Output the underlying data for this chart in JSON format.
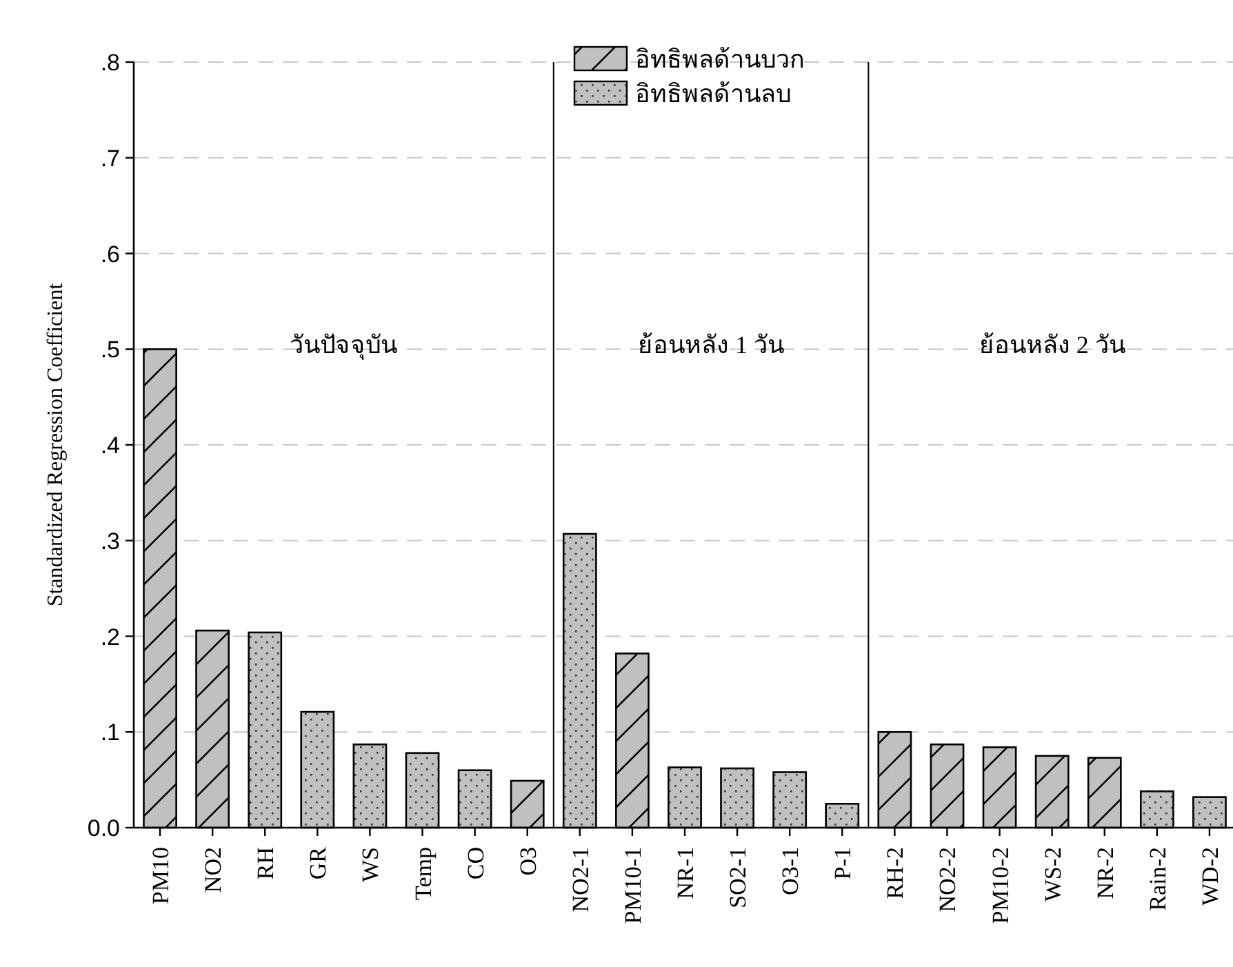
{
  "chart_data": {
    "type": "bar",
    "ylabel": "Standardized Regression Coefficient",
    "categories": [
      "PM10",
      "NO2",
      "RH",
      "GR",
      "WS",
      "Temp",
      "CO",
      "O3",
      "NO2-1",
      "PM10-1",
      "NR-1",
      "SO2-1",
      "O3-1",
      "P-1",
      "RH-2",
      "NO2-2",
      "PM10-2",
      "WS-2",
      "NR-2",
      "Rain-2",
      "WD-2"
    ],
    "series": [
      {
        "name": "อิทธิพลด้านบวก",
        "color": "#c0c0c0",
        "values": [
          0.5,
          0.206,
          null,
          null,
          null,
          null,
          null,
          0.049,
          null,
          0.182,
          null,
          null,
          null,
          null,
          0.1,
          0.087,
          0.084,
          0.075,
          0.073,
          null,
          null
        ]
      },
      {
        "name": "อิทธิพลด้านลบ",
        "color": "#c0c0c0",
        "values": [
          null,
          null,
          0.204,
          0.121,
          0.087,
          0.078,
          0.06,
          null,
          0.307,
          null,
          0.063,
          0.062,
          0.058,
          0.025,
          null,
          null,
          null,
          null,
          null,
          0.038,
          0.032
        ]
      }
    ],
    "ylim": [
      0,
      0.8
    ],
    "yticks": [
      {
        "value": 0,
        "label": "0.0"
      },
      {
        "value": 0.1,
        "label": ".1"
      },
      {
        "value": 0.2,
        "label": ".2"
      },
      {
        "value": 0.3,
        "label": ".3"
      },
      {
        "value": 0.4,
        "label": ".4"
      },
      {
        "value": 0.5,
        "label": ".5"
      },
      {
        "value": 0.6,
        "label": ".6"
      },
      {
        "value": 0.7,
        "label": ".7"
      },
      {
        "value": 0.8,
        "label": ".8"
      }
    ],
    "grid": "y",
    "legend": "top",
    "annotations": [
      "วันปัจจุบัน",
      "ย้อนหลัง 1 วัน",
      "ย้อนหลัง 2 วัน"
    ]
  }
}
